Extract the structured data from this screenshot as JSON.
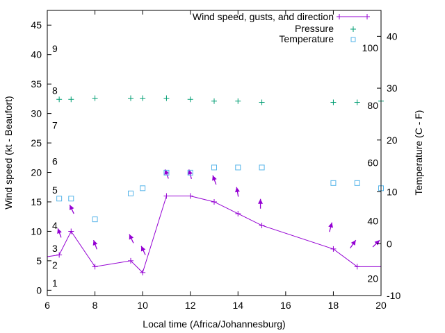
{
  "chart_data": {
    "type": "line",
    "xlabel": "Local time (Africa/Johannesburg)",
    "ylabel": "Wind speed (kt - Beaufort)",
    "y2label": "Temperature (C - F)",
    "xlim": [
      6,
      20
    ],
    "ylim": [
      -0.9,
      47.5
    ],
    "y2lim": [
      -10,
      45
    ],
    "x_ticks": [
      "6",
      "8",
      "10",
      "12",
      "14",
      "16",
      "18",
      "20"
    ],
    "y_ticks": [
      "0",
      "5",
      "10",
      "15",
      "20",
      "25",
      "30",
      "35",
      "40",
      "45"
    ],
    "y2_ticks": [
      "-10",
      "0",
      "10",
      "20",
      "30",
      "40"
    ],
    "beaufort_labels": [
      {
        "label": "1",
        "kt": 1.2
      },
      {
        "label": "2",
        "kt": 4.3
      },
      {
        "label": "3",
        "kt": 7.1
      },
      {
        "label": "4",
        "kt": 11
      },
      {
        "label": "5",
        "kt": 17
      },
      {
        "label": "6",
        "kt": 21.9
      },
      {
        "label": "7",
        "kt": 28
      },
      {
        "label": "8",
        "kt": 33.9
      },
      {
        "label": "9",
        "kt": 41
      }
    ],
    "fahrenheit_labels": [
      {
        "label": "20",
        "c": -6.7
      },
      {
        "label": "40",
        "c": 4.4
      },
      {
        "label": "60",
        "c": 15.6
      },
      {
        "label": "80",
        "c": 26.7
      },
      {
        "label": "100",
        "c": 37.8
      }
    ],
    "legend_position": "top-right",
    "series": [
      {
        "name": "Wind speed, gusts, and direction",
        "color": "#9400d3",
        "x": [
          6,
          6.5,
          7,
          8,
          9.5,
          10,
          11,
          12,
          13,
          14,
          15,
          18,
          19,
          20
        ],
        "values": [
          5.7,
          6,
          10,
          4,
          5,
          3,
          16,
          16,
          15,
          13,
          11,
          7,
          4,
          4
        ],
        "gusts": [
          {
            "x": 6.5,
            "gust": 10.5,
            "direction_deg": -20
          },
          {
            "x": 7,
            "gust": 14.5,
            "direction_deg": -25
          },
          {
            "x": 8,
            "gust": 8.5,
            "direction_deg": -20
          },
          {
            "x": 9.5,
            "gust": 9.5,
            "direction_deg": -25
          },
          {
            "x": 10,
            "gust": 7.5,
            "direction_deg": -25
          },
          {
            "x": 11,
            "gust": 20.5,
            "direction_deg": -20
          },
          {
            "x": 12,
            "gust": 20.5,
            "direction_deg": -15
          },
          {
            "x": 13,
            "gust": 19.5,
            "direction_deg": -20
          },
          {
            "x": 14,
            "gust": 17.5,
            "direction_deg": -10
          },
          {
            "x": 15,
            "gust": 15.5,
            "direction_deg": 0
          },
          {
            "x": 18,
            "gust": 11.5,
            "direction_deg": 15
          },
          {
            "x": 19,
            "gust": 8.5,
            "direction_deg": 35
          },
          {
            "x": 20,
            "gust": 8.5,
            "direction_deg": 45
          }
        ]
      },
      {
        "name": "Pressure",
        "color": "#009e73",
        "x": [
          6.5,
          7,
          8,
          9.5,
          10,
          11,
          12,
          13,
          14,
          15,
          18,
          19,
          20
        ],
        "values": [
          32.4,
          32.4,
          32.6,
          32.6,
          32.6,
          32.6,
          32.4,
          32.1,
          32.1,
          31.9,
          31.9,
          31.9,
          32.1
        ]
      },
      {
        "name": "Temperature",
        "color": "#56b4e9",
        "axis": "y2",
        "x": [
          6.5,
          7,
          8,
          9.5,
          10,
          11,
          12,
          13,
          14,
          15,
          18,
          19,
          20
        ],
        "values": [
          8.7,
          8.7,
          4.7,
          9.7,
          10.7,
          13.7,
          13.7,
          14.7,
          14.7,
          14.7,
          11.7,
          11.7,
          10.7
        ]
      }
    ]
  }
}
